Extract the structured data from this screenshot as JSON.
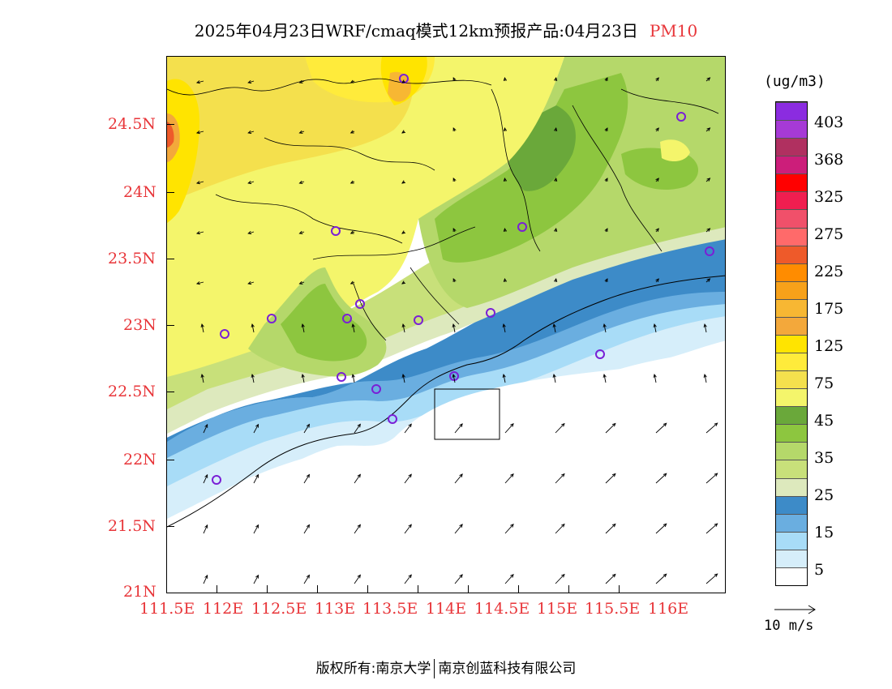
{
  "header": {
    "title": "2025年04月23日WRF/cmaq模式12km预报产品:04月23日",
    "variable": "PM10"
  },
  "map": {
    "region_lon": [
      111.5,
      116.5
    ],
    "region_lat": [
      21.0,
      25.0
    ],
    "x_labels": [
      "111.5E",
      "112E",
      "112.5E",
      "113E",
      "113.5E",
      "114E",
      "114.5E",
      "115E",
      "115.5E",
      "116E"
    ],
    "y_labels": [
      "24.5N",
      "24N",
      "23.5N",
      "23N",
      "22.5N",
      "22N",
      "21.5N",
      "21N"
    ],
    "label_color": "#e8363a"
  },
  "colorbar": {
    "unit": "(ug/m3)",
    "labels": [
      "403",
      "368",
      "325",
      "275",
      "225",
      "175",
      "125",
      "75",
      "45",
      "35",
      "25",
      "15",
      "5"
    ],
    "colors": [
      "#8b2ce0",
      "#a63ad6",
      "#b03060",
      "#cc1e7a",
      "#ff0000",
      "#f01e50",
      "#f0506a",
      "#ff6a6a",
      "#ee5a2a",
      "#ff8c00",
      "#f7a11a",
      "#f7b733",
      "#f3a83b",
      "#ffe400",
      "#ffeb3b",
      "#f4e04d",
      "#f4f56b",
      "#6aa83a",
      "#8dc63f",
      "#b5d86a",
      "#c8e07a",
      "#dde9bd",
      "#3d8bc8",
      "#6aaee0",
      "#a8dcf7",
      "#d6eefa",
      "#ffffff"
    ]
  },
  "wind_reference": {
    "label": "10 m/s"
  },
  "footer": {
    "copyright": "版权所有:南京大学",
    "org": "南京创蓝科技有限公司"
  }
}
